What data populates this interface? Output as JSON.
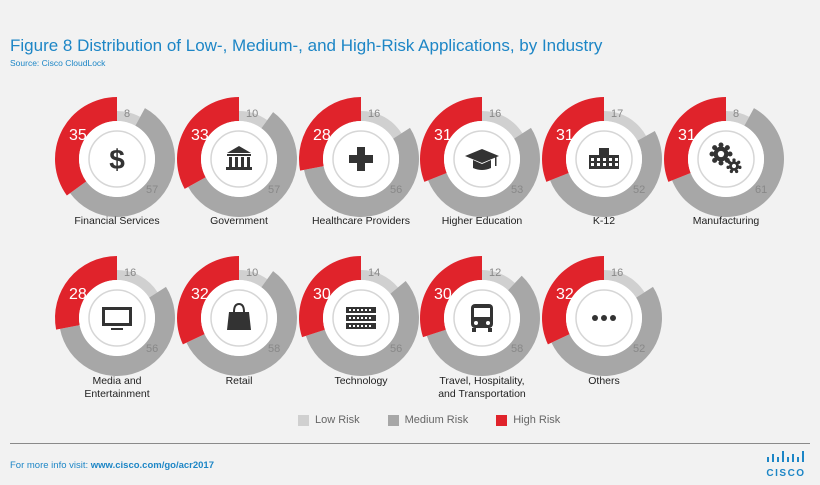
{
  "header": {
    "title": "Figure 8  Distribution of Low-, Medium-, and High-Risk Applications, by Industry",
    "source": "Source: Cisco CloudLock"
  },
  "legend": [
    {
      "label": "Low Risk",
      "color": "#d0d0d0"
    },
    {
      "label": "Medium Risk",
      "color": "#a7a7a7"
    },
    {
      "label": "High Risk",
      "color": "#e0232b"
    }
  ],
  "colors": {
    "low": "#d0d0d0",
    "medium": "#a7a7a7",
    "high": "#e0232b",
    "accent": "#1d86c6"
  },
  "footer": {
    "prefix": "For more info visit: ",
    "link": "www.cisco.com/go/acr2017",
    "logo": "CISCO"
  },
  "chart_data": {
    "type": "pie",
    "series_names": [
      "Low Risk",
      "Medium Risk",
      "High Risk"
    ],
    "items": [
      {
        "label": [
          "Financial Services"
        ],
        "icon": "dollar-icon",
        "low": 8,
        "medium": 57,
        "high": 35
      },
      {
        "label": [
          "Government"
        ],
        "icon": "government-building-icon",
        "low": 10,
        "medium": 57,
        "high": 33
      },
      {
        "label": [
          "Healthcare Providers"
        ],
        "icon": "medical-cross-icon",
        "low": 16,
        "medium": 56,
        "high": 28
      },
      {
        "label": [
          "Higher Education"
        ],
        "icon": "graduation-cap-icon",
        "low": 16,
        "medium": 53,
        "high": 31
      },
      {
        "label": [
          "K-12"
        ],
        "icon": "school-building-icon",
        "low": 17,
        "medium": 52,
        "high": 31
      },
      {
        "label": [
          "Manufacturing"
        ],
        "icon": "gears-icon",
        "low": 8,
        "medium": 61,
        "high": 31
      },
      {
        "label": [
          "Media and",
          "Entertainment"
        ],
        "icon": "monitor-icon",
        "low": 16,
        "medium": 56,
        "high": 28
      },
      {
        "label": [
          "Retail"
        ],
        "icon": "shopping-bag-icon",
        "low": 10,
        "medium": 58,
        "high": 32
      },
      {
        "label": [
          "Technology"
        ],
        "icon": "server-icon",
        "low": 14,
        "medium": 56,
        "high": 30
      },
      {
        "label": [
          "Travel, Hospitality,",
          "and Transportation"
        ],
        "icon": "bus-icon",
        "low": 12,
        "medium": 58,
        "high": 30
      },
      {
        "label": [
          "Others"
        ],
        "icon": "more-dots-icon",
        "low": 16,
        "medium": 52,
        "high": 32
      }
    ]
  }
}
